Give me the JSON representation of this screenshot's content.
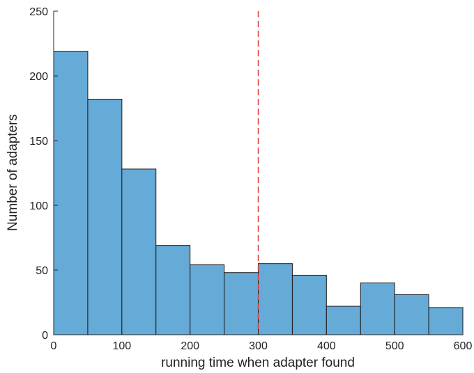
{
  "chart_data": {
    "type": "bar",
    "title": "",
    "xlabel": "running time when adapter found",
    "ylabel": "Number of adapters",
    "xlim": [
      0,
      600
    ],
    "ylim": [
      0,
      250
    ],
    "xticks": [
      0,
      100,
      200,
      300,
      400,
      500,
      600
    ],
    "yticks": [
      0,
      50,
      100,
      150,
      200,
      250
    ],
    "bin_edges": [
      0,
      50,
      100,
      150,
      200,
      250,
      300,
      350,
      400,
      450,
      500,
      550,
      600
    ],
    "values": [
      219,
      182,
      128,
      69,
      54,
      48,
      55,
      46,
      22,
      40,
      31,
      21
    ],
    "bar_color": "#66AAD7",
    "bar_edge_color": "#1A1A1A",
    "reference_line": {
      "x": 300,
      "color": "#E03A3A",
      "style": "dashed"
    },
    "grid": false
  }
}
